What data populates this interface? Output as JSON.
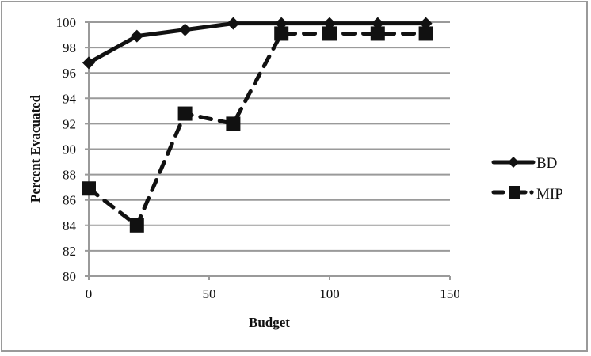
{
  "chart_data": {
    "type": "line",
    "title": "",
    "xlabel": "Budget",
    "ylabel": "Percent Evacuated",
    "xlim": [
      0,
      150
    ],
    "ylim": [
      80,
      100
    ],
    "x_ticks": [
      "0",
      "50",
      "100",
      "150"
    ],
    "y_ticks": [
      "80",
      "82",
      "84",
      "86",
      "88",
      "90",
      "92",
      "94",
      "96",
      "98",
      "100"
    ],
    "grid": "horizontal",
    "legend_position": "right",
    "x": [
      0,
      20,
      40,
      60,
      80,
      100,
      120,
      140
    ],
    "series": [
      {
        "name": "BD",
        "style": "solid",
        "marker": "diamond",
        "color": "#111111",
        "values": [
          96.8,
          98.9,
          99.4,
          99.9,
          99.9,
          99.9,
          99.9,
          99.9
        ]
      },
      {
        "name": "MIP",
        "style": "dashed",
        "marker": "square",
        "color": "#111111",
        "values": [
          86.9,
          84.0,
          92.8,
          92.0,
          99.1,
          99.1,
          99.1,
          99.1
        ]
      }
    ]
  },
  "legend": {
    "items": [
      {
        "label": "BD"
      },
      {
        "label": "MIP"
      }
    ]
  },
  "colors": {
    "grid": "#9a9a9a",
    "series": "#111111",
    "border": "#9a9a9a"
  }
}
